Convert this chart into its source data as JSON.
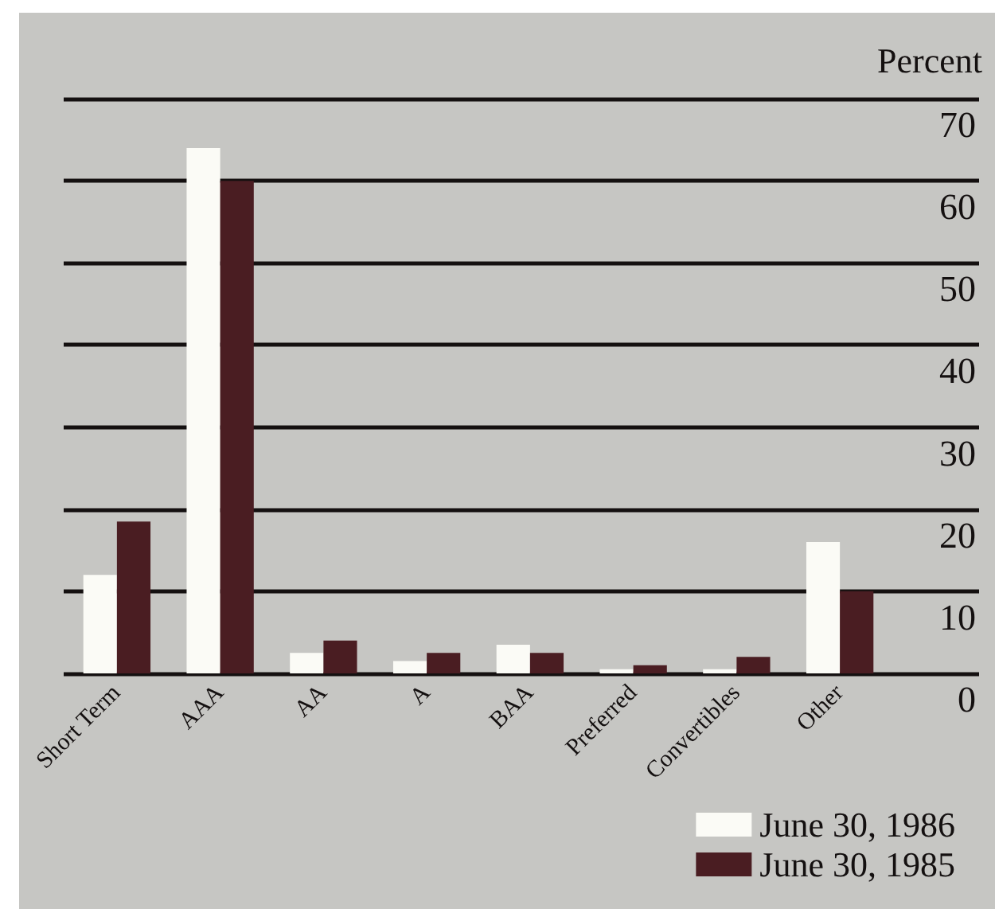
{
  "chart_data": {
    "type": "bar",
    "ylabel": "Percent",
    "categories": [
      "Short Term",
      "AAA",
      "AA",
      "A",
      "BAA",
      "Preferred",
      "Convertibles",
      "Other"
    ],
    "series": [
      {
        "name": "June 30, 1986",
        "color": "#fbfbf6",
        "values": [
          12,
          64,
          2.5,
          1.5,
          3.5,
          0.5,
          0.5,
          16
        ]
      },
      {
        "name": "June 30, 1985",
        "color": "#4a1d22",
        "values": [
          18.5,
          60,
          4,
          2.5,
          2.5,
          1,
          2,
          10
        ]
      }
    ],
    "ylim": [
      0,
      70
    ],
    "yticks": [
      0,
      10,
      20,
      30,
      40,
      50,
      60,
      70
    ],
    "grid": "y",
    "legend": "bottom right"
  }
}
